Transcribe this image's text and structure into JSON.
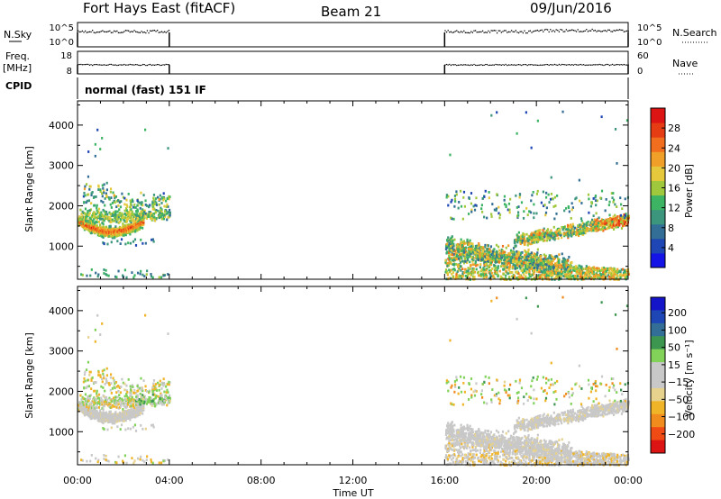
{
  "header": {
    "station": "Fort Hays East (fitACF)",
    "beam": "Beam 21",
    "date": "09/Jun/2016"
  },
  "panels": {
    "nsky": {
      "left_label": "N.Sky",
      "left_ticks": [
        "10^5",
        "10^0"
      ],
      "right_label": "N.Search",
      "right_ticks": [
        "10^5",
        "10^0"
      ]
    },
    "freq": {
      "left_label_1": "Freq.",
      "left_label_2": "[MHz]",
      "left_ticks": [
        "18",
        "8"
      ],
      "right_label": "Nave",
      "right_ticks": [
        "60",
        "0"
      ]
    },
    "cpid": {
      "label": "CPID",
      "value": "normal (fast) 151 IF"
    }
  },
  "colors": {
    "power_scale": [
      "#1414e6",
      "#1e46b4",
      "#326e96",
      "#3c967d",
      "#3cb464",
      "#a0c83c",
      "#e6c83c",
      "#f0a028",
      "#f06e1e",
      "#e63c14",
      "#dc1414"
    ],
    "velocity_scale": [
      "#dc1414",
      "#f04b14",
      "#f08c1e",
      "#f0b428",
      "#e6d28c",
      "#c8c8c8",
      "#c8c8c8",
      "#82d25a",
      "#3c9650",
      "#326e96",
      "#1e46b4",
      "#1414c8"
    ]
  },
  "chart_data": [
    {
      "type": "heatmap",
      "name": "power",
      "ylabel": "Slant Range [km]",
      "xlim_hours": [
        0,
        24
      ],
      "ylim": [
        180,
        4600
      ],
      "yticks": [
        "4000",
        "3000",
        "2000",
        "1000"
      ],
      "colorbar": {
        "label": "Power [dB]",
        "ticks": [
          "28",
          "24",
          "20",
          "16",
          "12",
          "8",
          "4"
        ],
        "range": [
          0,
          32
        ]
      }
    },
    {
      "type": "heatmap",
      "name": "velocity",
      "ylabel": "Slant Range [km]",
      "xlim_hours": [
        0,
        24
      ],
      "ylim": [
        180,
        4600
      ],
      "yticks": [
        "4000",
        "3000",
        "2000",
        "1000"
      ],
      "colorbar": {
        "label": "Velocity [m s⁻¹]",
        "ticks": [
          "200",
          "100",
          "50",
          "15",
          "−15",
          "−50",
          "−100",
          "−200"
        ]
      }
    }
  ],
  "xaxis": {
    "label": "Time UT",
    "ticks": [
      "00:00",
      "04:00",
      "08:00",
      "12:00",
      "16:00",
      "20:00",
      "00:00"
    ]
  },
  "data_intervals": [
    [
      0.0,
      4.0
    ],
    [
      16.0,
      24.0
    ]
  ]
}
